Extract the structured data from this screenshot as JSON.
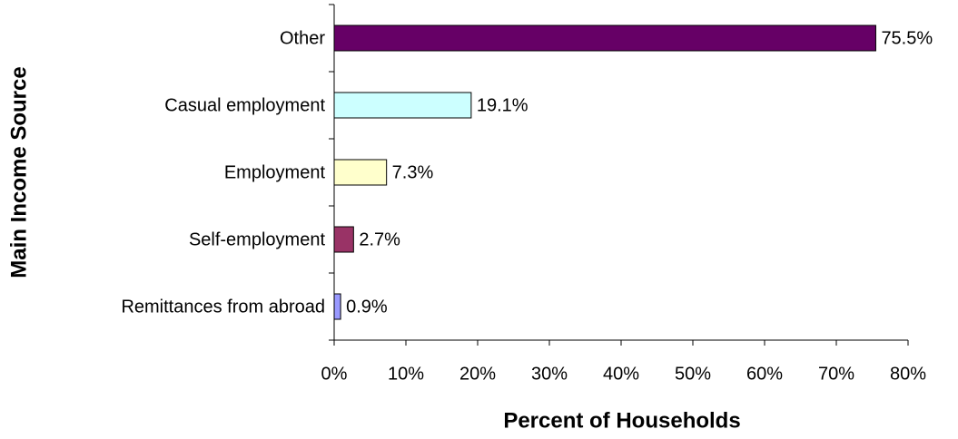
{
  "chart_data": {
    "type": "bar",
    "orientation": "horizontal",
    "xlabel": "Percent of Households",
    "ylabel": "Main Income Source",
    "categories": [
      "Other",
      "Casual employment",
      "Employment",
      "Self-employment",
      "Remittances from abroad"
    ],
    "values": [
      75.5,
      19.1,
      7.3,
      2.7,
      0.9
    ],
    "value_labels": [
      "75.5%",
      "19.1%",
      "7.3%",
      "2.7%",
      "0.9%"
    ],
    "colors": [
      "#660066",
      "#ccffff",
      "#ffffcc",
      "#993366",
      "#9999ff"
    ],
    "xlim": [
      0,
      80
    ],
    "xticks": [
      {
        "value": 0,
        "label": "0%"
      },
      {
        "value": 10,
        "label": "10%"
      },
      {
        "value": 20,
        "label": "20%"
      },
      {
        "value": 30,
        "label": "30%"
      },
      {
        "value": 40,
        "label": "40%"
      },
      {
        "value": 50,
        "label": "50%"
      },
      {
        "value": 60,
        "label": "60%"
      },
      {
        "value": 70,
        "label": "70%"
      },
      {
        "value": 80,
        "label": "80%"
      }
    ],
    "grid": false
  }
}
